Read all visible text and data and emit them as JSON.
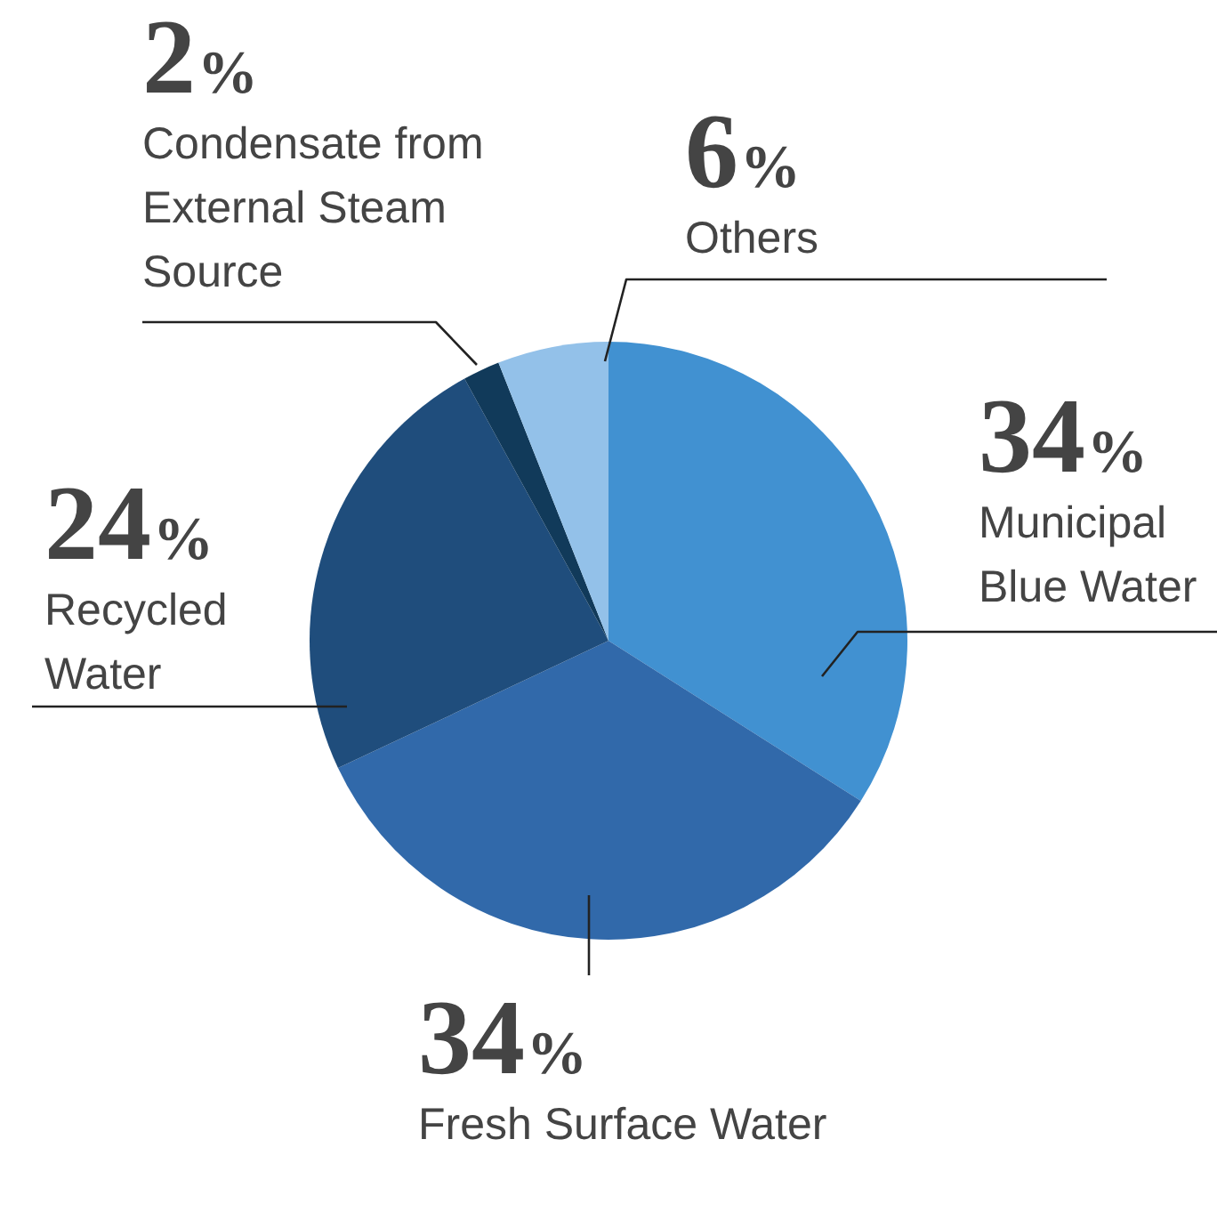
{
  "chart_data": {
    "type": "pie",
    "categories": [
      "Municipal Blue Water",
      "Fresh Surface Water",
      "Recycled Water",
      "Condensate from External Steam Source",
      "Others"
    ],
    "values": [
      34,
      34,
      24,
      2,
      6
    ],
    "colors": [
      "#4191d1",
      "#3169aa",
      "#1f4d7c",
      "#113a5a",
      "#93c1e9"
    ],
    "value_labels": [
      "34%",
      "34%",
      "24%",
      "2%",
      "6%"
    ],
    "legend": false
  }
}
